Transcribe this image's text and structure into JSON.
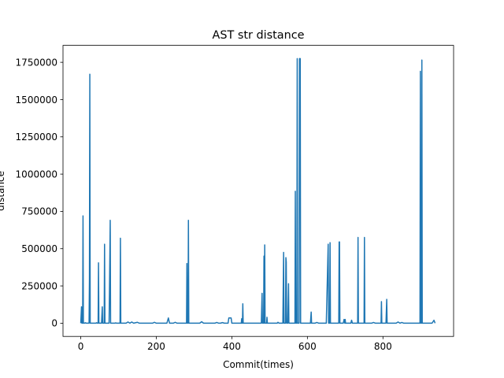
{
  "chart_data": {
    "type": "line",
    "title": "AST str distance",
    "xlabel": "Commit(times)",
    "ylabel": "distance",
    "xlim": [
      -47,
      987
    ],
    "ylim": [
      -88750,
      1863750
    ],
    "xticks": [
      0,
      200,
      400,
      600,
      800
    ],
    "yticks": [
      0,
      250000,
      500000,
      750000,
      1000000,
      1250000,
      1500000,
      1750000
    ],
    "grid": false,
    "legend": "none",
    "color": "#1f77b4",
    "series": [
      {
        "values_xy": [
          [
            0,
            0
          ],
          [
            2,
            110000
          ],
          [
            3,
            0
          ],
          [
            5,
            0
          ],
          [
            6,
            720000
          ],
          [
            7,
            0
          ],
          [
            10,
            0
          ],
          [
            12,
            3000
          ],
          [
            15,
            0
          ],
          [
            22,
            0
          ],
          [
            23,
            300000
          ],
          [
            24,
            1670000
          ],
          [
            25,
            0
          ],
          [
            40,
            0
          ],
          [
            42,
            3000
          ],
          [
            44,
            0
          ],
          [
            46,
            0
          ],
          [
            47,
            405000
          ],
          [
            48,
            0
          ],
          [
            55,
            0
          ],
          [
            57,
            110000
          ],
          [
            58,
            0
          ],
          [
            62,
            0
          ],
          [
            63,
            530000
          ],
          [
            64,
            0
          ],
          [
            75,
            0
          ],
          [
            76,
            200000
          ],
          [
            78,
            690000
          ],
          [
            79,
            0
          ],
          [
            90,
            0
          ],
          [
            92,
            2000
          ],
          [
            95,
            0
          ],
          [
            104,
            0
          ],
          [
            105,
            570000
          ],
          [
            106,
            0
          ],
          [
            120,
            0
          ],
          [
            125,
            8000
          ],
          [
            130,
            0
          ],
          [
            135,
            8000
          ],
          [
            140,
            0
          ],
          [
            150,
            6000
          ],
          [
            155,
            0
          ],
          [
            190,
            0
          ],
          [
            195,
            6000
          ],
          [
            200,
            0
          ],
          [
            228,
            0
          ],
          [
            232,
            35000
          ],
          [
            235,
            0
          ],
          [
            245,
            0
          ],
          [
            250,
            6000
          ],
          [
            255,
            0
          ],
          [
            280,
            0
          ],
          [
            281,
            400000
          ],
          [
            282,
            0
          ],
          [
            284,
            0
          ],
          [
            285,
            690000
          ],
          [
            286,
            0
          ],
          [
            315,
            0
          ],
          [
            320,
            10000
          ],
          [
            325,
            0
          ],
          [
            355,
            0
          ],
          [
            360,
            5000
          ],
          [
            365,
            0
          ],
          [
            370,
            0
          ],
          [
            375,
            4000
          ],
          [
            380,
            0
          ],
          [
            390,
            0
          ],
          [
            392,
            35000
          ],
          [
            398,
            35000
          ],
          [
            400,
            0
          ],
          [
            425,
            0
          ],
          [
            426,
            30000
          ],
          [
            427,
            0
          ],
          [
            428,
            0
          ],
          [
            429,
            130000
          ],
          [
            430,
            0
          ],
          [
            478,
            0
          ],
          [
            480,
            200000
          ],
          [
            481,
            0
          ],
          [
            484,
            0
          ],
          [
            485,
            450000
          ],
          [
            486,
            0
          ],
          [
            487,
            525000
          ],
          [
            488,
            0
          ],
          [
            492,
            0
          ],
          [
            493,
            40000
          ],
          [
            494,
            0
          ],
          [
            520,
            0
          ],
          [
            522,
            6000
          ],
          [
            525,
            0
          ],
          [
            535,
            0
          ],
          [
            537,
            475000
          ],
          [
            538,
            0
          ],
          [
            542,
            0
          ],
          [
            543,
            440000
          ],
          [
            544,
            410000
          ],
          [
            545,
            0
          ],
          [
            548,
            0
          ],
          [
            550,
            265000
          ],
          [
            551,
            0
          ],
          [
            567,
            0
          ],
          [
            568,
            885000
          ],
          [
            569,
            0
          ],
          [
            572,
            0
          ],
          [
            573,
            1775000
          ],
          [
            574,
            0
          ],
          [
            578,
            0
          ],
          [
            579,
            1775000
          ],
          [
            580,
            1775000
          ],
          [
            581,
            1775000
          ],
          [
            582,
            0
          ],
          [
            608,
            0
          ],
          [
            610,
            75000
          ],
          [
            611,
            0
          ],
          [
            620,
            0
          ],
          [
            625,
            5000
          ],
          [
            630,
            0
          ],
          [
            650,
            0
          ],
          [
            655,
            530000
          ],
          [
            656,
            0
          ],
          [
            659,
            0
          ],
          [
            660,
            540000
          ],
          [
            661,
            0
          ],
          [
            683,
            0
          ],
          [
            684,
            545000
          ],
          [
            685,
            545000
          ],
          [
            686,
            0
          ],
          [
            695,
            0
          ],
          [
            697,
            25000
          ],
          [
            699,
            0
          ],
          [
            700,
            25000
          ],
          [
            701,
            0
          ],
          [
            715,
            0
          ],
          [
            717,
            20000
          ],
          [
            719,
            0
          ],
          [
            733,
            0
          ],
          [
            734,
            575000
          ],
          [
            735,
            0
          ],
          [
            750,
            0
          ],
          [
            751,
            575000
          ],
          [
            752,
            0
          ],
          [
            770,
            0
          ],
          [
            775,
            5000
          ],
          [
            780,
            0
          ],
          [
            795,
            0
          ],
          [
            796,
            145000
          ],
          [
            797,
            0
          ],
          [
            808,
            0
          ],
          [
            810,
            160000
          ],
          [
            811,
            0
          ],
          [
            835,
            0
          ],
          [
            840,
            8000
          ],
          [
            845,
            0
          ],
          [
            850,
            5000
          ],
          [
            855,
            0
          ],
          [
            898,
            0
          ],
          [
            899,
            1690000
          ],
          [
            900,
            0
          ],
          [
            902,
            0
          ],
          [
            903,
            1765000
          ],
          [
            904,
            0
          ],
          [
            930,
            0
          ],
          [
            935,
            20000
          ],
          [
            938,
            0
          ]
        ]
      }
    ]
  }
}
